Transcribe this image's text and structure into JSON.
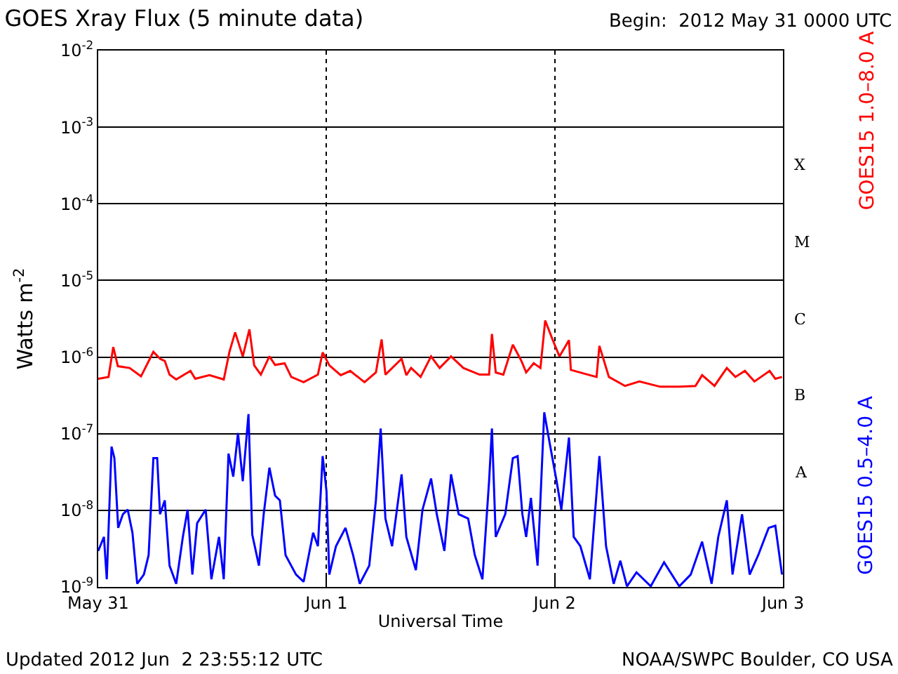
{
  "chart_data": {
    "type": "line",
    "title": "GOES Xray Flux (5 minute data)",
    "subtitle": "Begin:  2012 May 31 0000 UTC",
    "xlabel": "Universal Time",
    "ylabel": "Watts m$^{-2}$",
    "xlim": [
      "2012-05-31",
      "2012-06-03"
    ],
    "xticks": [
      {
        "value": "2012-05-31",
        "label": "May 31"
      },
      {
        "value": "2012-06-01",
        "label": "Jun 1"
      },
      {
        "value": "2012-06-02",
        "label": "Jun 2"
      },
      {
        "value": "2012-06-03",
        "label": "Jun 3"
      }
    ],
    "ylim": [
      1e-09,
      0.01
    ],
    "yticks": [
      {
        "value": 1e-09,
        "label": "10$^{-9}$"
      },
      {
        "value": 1e-08,
        "label": "10$^{-8}$"
      },
      {
        "value": 1e-07,
        "label": "10$^{-7}$"
      },
      {
        "value": 1e-06,
        "label": "10$^{-6}$"
      },
      {
        "value": 1e-05,
        "label": "10$^{-5}$"
      },
      {
        "value": 0.0001,
        "label": "10$^{-4}$"
      },
      {
        "value": 0.001,
        "label": "10$^{-3}$"
      },
      {
        "value": 0.01,
        "label": "10$^{-2}$"
      }
    ],
    "log": "y",
    "grid": true,
    "legend": false,
    "marker": "none",
    "line_style": "solid",
    "annotations": [
      "A",
      "B",
      "C",
      "M",
      "X",
      "Updated 2012 Jun  2 23:55:12 UTC",
      "NOAA/SWPC Boulder, CO USA"
    ],
    "series": [
      {
        "name": "GOES15 1.0–8.0 A",
        "color": "#ff0000",
        "x": [
          "2012-05-31T00:00",
          "2012-05-31T01:05",
          "2012-05-31T01:35",
          "2012-05-31T02:04",
          "2012-05-31T03:18",
          "2012-05-31T04:30",
          "2012-05-31T05:48",
          "2012-05-31T06:30",
          "2012-05-31T07:00",
          "2012-05-31T07:30",
          "2012-05-31T08:12",
          "2012-05-31T09:42",
          "2012-05-31T10:12",
          "2012-05-31T11:42",
          "2012-05-31T13:12",
          "2012-05-31T13:48",
          "2012-05-31T14:24",
          "2012-05-31T15:12",
          "2012-05-31T15:54",
          "2012-05-31T16:24",
          "2012-05-31T17:06",
          "2012-05-31T18:00",
          "2012-05-31T18:36",
          "2012-05-31T19:36",
          "2012-05-31T20:18",
          "2012-05-31T21:36",
          "2012-05-31T23:06",
          "2012-05-31T23:36",
          "2012-06-01T00:18",
          "2012-06-01T01:30",
          "2012-06-01T02:30",
          "2012-06-01T04:00",
          "2012-06-01T05:12",
          "2012-06-01T05:48",
          "2012-06-01T06:12",
          "2012-06-01T07:54",
          "2012-06-01T08:24",
          "2012-06-01T08:54",
          "2012-06-01T09:54",
          "2012-06-01T11:00",
          "2012-06-01T11:54",
          "2012-06-01T13:06",
          "2012-06-01T14:24",
          "2012-06-01T16:06",
          "2012-06-01T17:06",
          "2012-06-01T17:24",
          "2012-06-01T17:48",
          "2012-06-01T18:36",
          "2012-06-01T19:36",
          "2012-06-01T20:30",
          "2012-06-01T21:00",
          "2012-06-01T21:48",
          "2012-06-01T22:30",
          "2012-06-01T23:00",
          "2012-06-01T23:48",
          "2012-06-02T00:30",
          "2012-06-02T01:30",
          "2012-06-02T01:42",
          "2012-06-02T03:42",
          "2012-06-02T04:24",
          "2012-06-02T04:42",
          "2012-06-02T05:42",
          "2012-06-02T07:24",
          "2012-06-02T08:54",
          "2012-06-02T11:06",
          "2012-06-02T13:06",
          "2012-06-02T14:48",
          "2012-06-02T15:30",
          "2012-06-02T16:48",
          "2012-06-02T18:06",
          "2012-06-02T19:00",
          "2012-06-02T20:00",
          "2012-06-02T21:00",
          "2012-06-02T22:36",
          "2012-06-02T23:12",
          "2012-06-02T23:54"
        ],
        "values": [
          5.2e-07,
          5.5e-07,
          1.35e-06,
          7.6e-07,
          7.2e-07,
          5.6e-07,
          1.17e-06,
          9.5e-07,
          8.9e-07,
          5.9e-07,
          5.1e-07,
          6.6e-07,
          5.2e-07,
          5.8e-07,
          5.1e-07,
          1.17e-06,
          2.1e-06,
          1.02e-06,
          2.3e-06,
          7.8e-07,
          5.9e-07,
          1.02e-06,
          7.9e-07,
          8.3e-07,
          5.5e-07,
          4.7e-07,
          5.9e-07,
          1.15e-06,
          7.8e-07,
          5.8e-07,
          6.6e-07,
          4.7e-07,
          6.3e-07,
          1.7e-06,
          5.9e-07,
          9.5e-07,
          5.8e-07,
          7.2e-07,
          5.5e-07,
          1.02e-06,
          7.2e-07,
          1.02e-06,
          7.2e-07,
          5.9e-07,
          5.9e-07,
          2e-06,
          6.3e-07,
          5.9e-07,
          1.45e-06,
          8.9e-07,
          6.3e-07,
          8.3e-07,
          7.2e-07,
          3e-06,
          1.66e-06,
          1.02e-06,
          1.66e-06,
          6.8e-07,
          5.8e-07,
          5.5e-07,
          1.4e-06,
          5.5e-07,
          4.2e-07,
          4.8e-07,
          4.1e-07,
          4.1e-07,
          4.2e-07,
          5.8e-07,
          4.2e-07,
          7.2e-07,
          5.5e-07,
          6.6e-07,
          4.8e-07,
          6.6e-07,
          5.2e-07,
          5.5e-07
        ]
      },
      {
        "name": "GOES15 0.5–4.0 A",
        "color": "#0000ff",
        "x": [
          "2012-05-31T00:00",
          "2012-05-31T00:36",
          "2012-05-31T00:54",
          "2012-05-31T01:24",
          "2012-05-31T01:42",
          "2012-05-31T02:06",
          "2012-05-31T02:36",
          "2012-05-31T03:06",
          "2012-05-31T03:36",
          "2012-05-31T04:06",
          "2012-05-31T04:48",
          "2012-05-31T05:18",
          "2012-05-31T05:48",
          "2012-05-31T06:12",
          "2012-05-31T06:30",
          "2012-05-31T07:00",
          "2012-05-31T07:30",
          "2012-05-31T08:12",
          "2012-05-31T08:54",
          "2012-05-31T09:24",
          "2012-05-31T09:54",
          "2012-05-31T10:24",
          "2012-05-31T11:18",
          "2012-05-31T11:54",
          "2012-05-31T12:42",
          "2012-05-31T13:12",
          "2012-05-31T13:42",
          "2012-05-31T14:12",
          "2012-05-31T14:42",
          "2012-05-31T15:12",
          "2012-05-31T15:48",
          "2012-05-31T16:12",
          "2012-05-31T16:54",
          "2012-05-31T17:24",
          "2012-05-31T18:00",
          "2012-05-31T18:36",
          "2012-05-31T19:06",
          "2012-05-31T19:42",
          "2012-05-31T20:48",
          "2012-05-31T21:36",
          "2012-05-31T22:36",
          "2012-05-31T23:06",
          "2012-05-31T23:36",
          "2012-06-01T00:00",
          "2012-06-01T00:18",
          "2012-06-01T01:00",
          "2012-06-01T02:00",
          "2012-06-01T02:48",
          "2012-06-01T03:30",
          "2012-06-01T04:30",
          "2012-06-01T05:12",
          "2012-06-01T05:42",
          "2012-06-01T06:12",
          "2012-06-01T06:54",
          "2012-06-01T07:54",
          "2012-06-01T08:24",
          "2012-06-01T09:24",
          "2012-06-01T10:06",
          "2012-06-01T11:00",
          "2012-06-01T11:36",
          "2012-06-01T12:24",
          "2012-06-01T13:06",
          "2012-06-01T13:54",
          "2012-06-01T14:54",
          "2012-06-01T15:36",
          "2012-06-01T16:24",
          "2012-06-01T17:06",
          "2012-06-01T17:24",
          "2012-06-01T17:48",
          "2012-06-01T18:48",
          "2012-06-01T19:36",
          "2012-06-01T20:06",
          "2012-06-01T20:36",
          "2012-06-01T21:00",
          "2012-06-01T21:30",
          "2012-06-01T22:12",
          "2012-06-01T22:54",
          "2012-06-01T23:30",
          "2012-06-02T00:12",
          "2012-06-02T00:42",
          "2012-06-02T01:30",
          "2012-06-02T02:00",
          "2012-06-02T02:42",
          "2012-06-02T03:42",
          "2012-06-02T04:42",
          "2012-06-02T05:24",
          "2012-06-02T06:12",
          "2012-06-02T06:54",
          "2012-06-02T07:36",
          "2012-06-02T08:36",
          "2012-06-02T10:06",
          "2012-06-02T11:30",
          "2012-06-02T13:06",
          "2012-06-02T14:18",
          "2012-06-02T15:30",
          "2012-06-02T16:30",
          "2012-06-02T17:12",
          "2012-06-02T18:06",
          "2012-06-02T18:42",
          "2012-06-02T19:42",
          "2012-06-02T20:30",
          "2012-06-02T21:24",
          "2012-06-02T22:30",
          "2012-06-02T23:12",
          "2012-06-02T23:54"
        ],
        "values": [
          2.95e-09,
          4.5e-09,
          1.26e-09,
          6.8e-08,
          4.8e-08,
          5.9e-09,
          8.9e-09,
          1.02e-08,
          5.1e-09,
          1.1e-09,
          1.45e-09,
          2.6e-09,
          4.8e-08,
          4.8e-08,
          8.9e-09,
          1.35e-08,
          1.9e-09,
          1.1e-09,
          4.5e-09,
          1.02e-08,
          1.45e-09,
          6.8e-09,
          1.02e-08,
          1.26e-09,
          4.5e-09,
          1.26e-09,
          5.5e-08,
          2.75e-08,
          1.02e-07,
          2.4e-08,
          1.8e-07,
          4.8e-09,
          1.9e-09,
          8.9e-09,
          3.6e-08,
          1.55e-08,
          1.35e-08,
          2.6e-09,
          1.45e-09,
          1.17e-09,
          5.1e-09,
          3.4e-09,
          5.1e-08,
          1.8e-08,
          1.45e-09,
          3.4e-09,
          5.9e-09,
          2.6e-09,
          1.1e-09,
          1.9e-09,
          1.35e-08,
          1.17e-07,
          7.8e-09,
          3.4e-09,
          2.95e-08,
          4.5e-09,
          1.66e-09,
          1.02e-08,
          2.6e-08,
          8.9e-09,
          2.95e-09,
          2.95e-08,
          8.9e-09,
          7.8e-09,
          2.6e-09,
          1.26e-09,
          2.4e-08,
          1.17e-07,
          4.5e-09,
          8.9e-09,
          4.8e-08,
          5.1e-08,
          8.9e-09,
          4.5e-09,
          1.45e-08,
          1.9e-09,
          1.9e-07,
          7.2e-08,
          2.4e-08,
          1.02e-08,
          8.9e-08,
          4.5e-09,
          3.4e-09,
          1.26e-09,
          5.1e-08,
          3.4e-09,
          1.1e-09,
          2.2e-09,
          1.02e-09,
          1.55e-09,
          1.02e-09,
          2.1e-09,
          1.02e-09,
          1.45e-09,
          3.9e-09,
          1.1e-09,
          4.5e-09,
          1.35e-08,
          1.45e-09,
          8.9e-09,
          1.45e-09,
          2.6e-09,
          5.9e-09,
          6.3e-09,
          1.45e-09
        ]
      }
    ]
  }
}
